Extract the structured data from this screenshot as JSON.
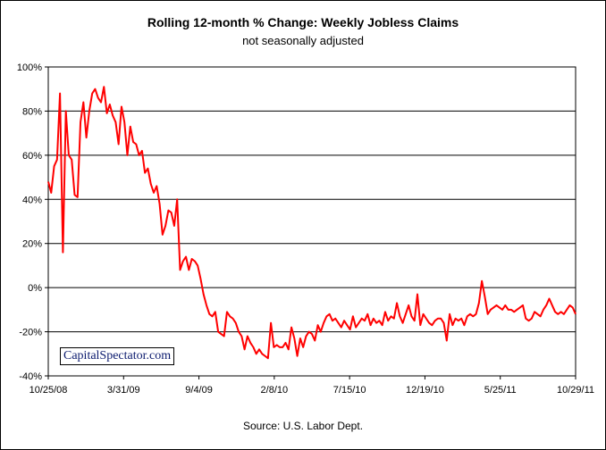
{
  "chart_data": {
    "type": "line",
    "title": "Rolling 12-month %  Change: Weekly Jobless Claims",
    "subtitle": "not seasonally adjusted",
    "source": "Source: U.S. Labor Dept.",
    "watermark": "CapitalSpectator.com",
    "y_ticks": [
      "100%",
      "80%",
      "60%",
      "40%",
      "20%",
      "0%",
      "-20%",
      "-40%"
    ],
    "x_ticks": [
      "10/25/08",
      "3/31/09",
      "9/4/09",
      "2/8/10",
      "7/15/10",
      "12/19/10",
      "5/25/11",
      "10/29/11"
    ],
    "ylim": [
      -40,
      100
    ],
    "grid": true,
    "series_color": "#ff0000",
    "values": [
      48,
      43,
      55,
      58,
      88,
      16,
      80,
      60,
      58,
      42,
      41,
      75,
      84,
      68,
      80,
      88,
      90,
      86,
      84,
      91,
      79,
      83,
      78,
      75,
      65,
      82,
      75,
      60,
      73,
      66,
      65,
      60,
      62,
      52,
      54,
      47,
      43,
      46,
      38,
      24,
      28,
      35,
      34,
      28,
      40,
      8,
      12,
      14,
      8,
      13,
      12,
      10,
      4,
      -3,
      -8,
      -12,
      -13,
      -11,
      -20,
      -21,
      -22,
      -11,
      -13,
      -14,
      -16,
      -20,
      -22,
      -28,
      -22,
      -25,
      -27,
      -30,
      -28,
      -30,
      -31,
      -32,
      -16,
      -27,
      -26,
      -27,
      -27,
      -25,
      -28,
      -18,
      -23,
      -31,
      -23,
      -27,
      -22,
      -20,
      -21,
      -24,
      -17,
      -20,
      -16,
      -13,
      -12,
      -15,
      -14,
      -16,
      -18,
      -15,
      -17,
      -19,
      -13,
      -18,
      -16,
      -14,
      -15,
      -12,
      -17,
      -14,
      -16,
      -15,
      -17,
      -11,
      -15,
      -13,
      -14,
      -7,
      -13,
      -16,
      -12,
      -8,
      -13,
      -15,
      -3,
      -17,
      -12,
      -14,
      -16,
      -17,
      -15,
      -14,
      -14,
      -16,
      -24,
      -12,
      -17,
      -14,
      -15,
      -14,
      -17,
      -13,
      -12,
      -13,
      -12,
      -7,
      3,
      -4,
      -12,
      -10,
      -9,
      -8,
      -9,
      -10,
      -8,
      -10,
      -10,
      -11,
      -10,
      -9,
      -8,
      -14,
      -15,
      -14,
      -11,
      -12,
      -13,
      -10,
      -8,
      -5,
      -8,
      -11,
      -12,
      -11,
      -12,
      -10,
      -8,
      -9,
      -12
    ]
  }
}
